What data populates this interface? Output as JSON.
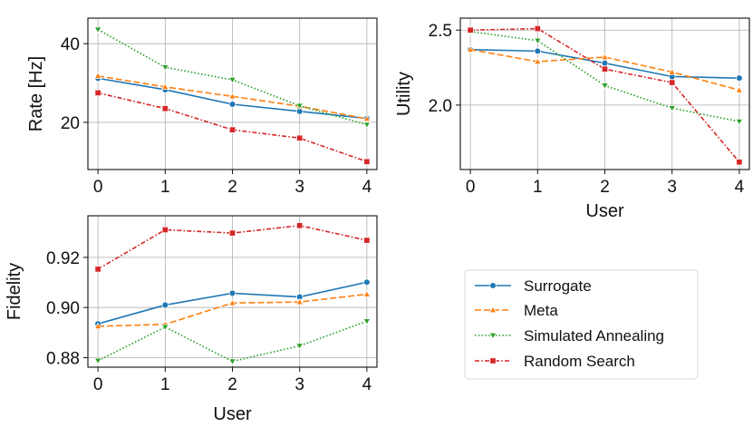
{
  "colors": {
    "Surrogate": "#1f77b4",
    "Meta": "#ff7f0e",
    "Simulated Annealing": "#2ca02c",
    "Random Search": "#d62728"
  },
  "chart_data": [
    {
      "type": "line",
      "id": "rate",
      "xlabel": "",
      "ylabel": "Rate [Hz]",
      "x": [
        0,
        1,
        2,
        3,
        4
      ],
      "xticks": [
        "0",
        "1",
        "2",
        "3",
        "4"
      ],
      "xlim": [
        -0.15,
        4.15
      ],
      "ylim": [
        8.0,
        46.5
      ],
      "yticks": [
        20,
        40
      ],
      "ytick_labels": [
        "20",
        "40"
      ],
      "grid": true,
      "series": [
        {
          "name": "Surrogate",
          "values": [
            31.2,
            28.3,
            24.6,
            22.8,
            21.0
          ]
        },
        {
          "name": "Meta",
          "values": [
            31.8,
            29.0,
            26.6,
            24.1,
            20.9
          ]
        },
        {
          "name": "Simulated Annealing",
          "values": [
            43.6,
            34.0,
            30.8,
            24.2,
            19.4
          ]
        },
        {
          "name": "Random Search",
          "values": [
            27.5,
            23.5,
            18.1,
            16.0,
            10.0
          ]
        }
      ]
    },
    {
      "type": "line",
      "id": "utility",
      "xlabel": "User",
      "ylabel": "Utility",
      "x": [
        0,
        1,
        2,
        3,
        4
      ],
      "xticks": [
        "0",
        "1",
        "2",
        "3",
        "4"
      ],
      "xlim": [
        -0.15,
        4.15
      ],
      "ylim": [
        1.57,
        2.58
      ],
      "yticks": [
        2.0,
        2.5
      ],
      "ytick_labels": [
        "2.0",
        "2.5"
      ],
      "grid": true,
      "series": [
        {
          "name": "Surrogate",
          "values": [
            2.37,
            2.36,
            2.28,
            2.19,
            2.18
          ]
        },
        {
          "name": "Meta",
          "values": [
            2.37,
            2.29,
            2.32,
            2.22,
            2.1
          ]
        },
        {
          "name": "Simulated Annealing",
          "values": [
            2.49,
            2.43,
            2.13,
            1.98,
            1.89
          ]
        },
        {
          "name": "Random Search",
          "values": [
            2.5,
            2.51,
            2.24,
            2.15,
            1.62
          ]
        }
      ]
    },
    {
      "type": "line",
      "id": "fidelity",
      "xlabel": "User",
      "ylabel": "Fidelity",
      "x": [
        0,
        1,
        2,
        3,
        4
      ],
      "xticks": [
        "0",
        "1",
        "2",
        "3",
        "4"
      ],
      "xlim": [
        -0.15,
        4.15
      ],
      "ylim": [
        0.8762,
        0.9366
      ],
      "yticks": [
        0.88,
        0.9,
        0.92
      ],
      "ytick_labels": [
        "0.88",
        "0.90",
        "0.92"
      ],
      "grid": true,
      "series": [
        {
          "name": "Surrogate",
          "values": [
            0.8935,
            0.901,
            0.9057,
            0.9042,
            0.9101
          ]
        },
        {
          "name": "Meta",
          "values": [
            0.8925,
            0.8933,
            0.9018,
            0.9022,
            0.9053
          ]
        },
        {
          "name": "Simulated Annealing",
          "values": [
            0.8788,
            0.8922,
            0.8785,
            0.8847,
            0.8945
          ]
        },
        {
          "name": "Random Search",
          "values": [
            0.9153,
            0.931,
            0.9297,
            0.9327,
            0.9268
          ]
        }
      ]
    }
  ],
  "legend": {
    "location": "lower-right",
    "entries": [
      {
        "name": "Surrogate",
        "marker": "circle",
        "dash": "solid"
      },
      {
        "name": "Meta",
        "marker": "triangle-up",
        "dash": "dashed"
      },
      {
        "name": "Simulated Annealing",
        "marker": "triangle-down",
        "dash": "dotted"
      },
      {
        "name": "Random Search",
        "marker": "square",
        "dash": "dashdot"
      }
    ]
  }
}
